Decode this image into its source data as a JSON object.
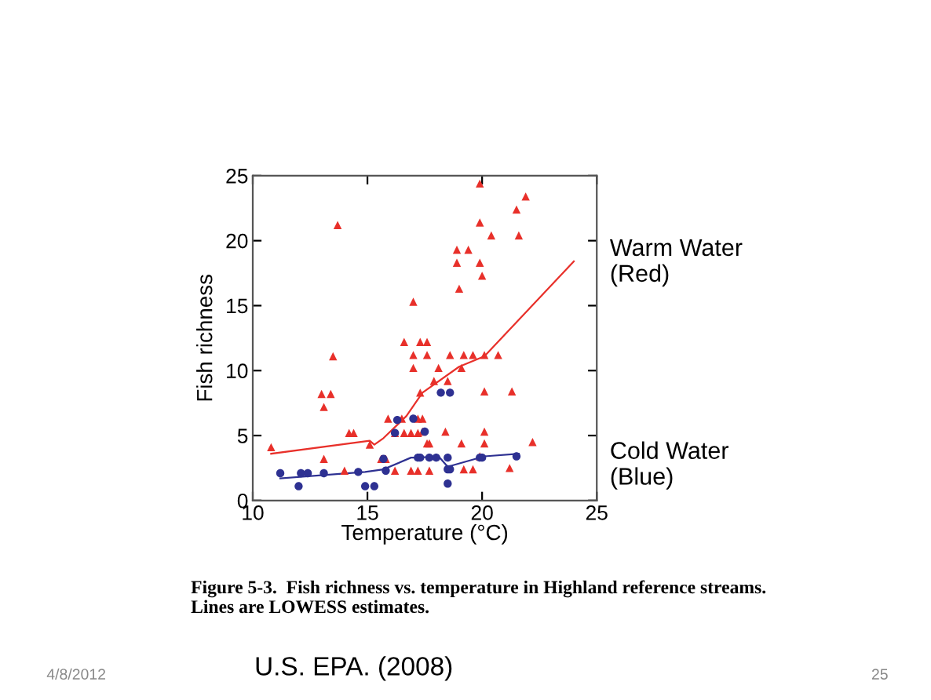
{
  "chart_data": {
    "type": "scatter",
    "xlabel": "Temperature (°C)",
    "ylabel": "Fish richness",
    "xlim": [
      10,
      25
    ],
    "ylim": [
      0,
      25
    ],
    "xticks": [
      10,
      15,
      20,
      25
    ],
    "yticks": [
      0,
      5,
      10,
      15,
      20,
      25
    ],
    "grid": false,
    "legend": false,
    "series": [
      {
        "marker": "triangle",
        "color": "#e8302a",
        "x": [
          10.8,
          13.7,
          13.5,
          13.0,
          13.4,
          13.1,
          13.1,
          14.2,
          14.4,
          14.0,
          15.1,
          15.6,
          15.8,
          16.2,
          15.9,
          16.2,
          16.5,
          16.6,
          16.9,
          17.2,
          17.0,
          16.6,
          17.0,
          17.0,
          17.3,
          17.3,
          17.2,
          16.9,
          17.2,
          19.9,
          21.9,
          21.5,
          21.6,
          19.9,
          20.4,
          18.9,
          19.4,
          18.9,
          19.9,
          20.0,
          19.0,
          17.6,
          17.6,
          18.6,
          19.2,
          19.6,
          20.1,
          20.7,
          18.1,
          19.1,
          17.9,
          18.5,
          20.1,
          21.3,
          17.4,
          17.4,
          18.4,
          20.1,
          17.6,
          17.7,
          19.1,
          20.1,
          22.2,
          17.7,
          19.2,
          19.6,
          21.2,
          19.9
        ],
        "values": [
          4.1,
          21.2,
          11.1,
          8.2,
          8.2,
          7.2,
          3.2,
          5.2,
          5.2,
          2.3,
          4.3,
          3.2,
          3.2,
          5.2,
          6.3,
          2.3,
          6.3,
          5.2,
          5.2,
          5.2,
          15.3,
          12.2,
          11.2,
          10.2,
          12.2,
          8.3,
          6.3,
          2.3,
          2.3,
          24.4,
          23.4,
          22.4,
          20.4,
          21.4,
          20.4,
          19.3,
          19.3,
          18.3,
          18.3,
          17.3,
          16.3,
          12.2,
          11.2,
          11.2,
          11.2,
          11.2,
          11.2,
          11.2,
          10.2,
          10.2,
          9.2,
          9.2,
          8.4,
          8.4,
          6.3,
          5.3,
          5.3,
          5.3,
          4.4,
          4.4,
          4.4,
          4.4,
          4.5,
          2.3,
          2.4,
          2.4,
          2.5,
          3.4
        ]
      },
      {
        "marker": "circle",
        "color": "#2e3192",
        "x": [
          11.2,
          12.0,
          12.1,
          12.4,
          13.1,
          14.6,
          14.9,
          15.3,
          15.7,
          15.8,
          16.3,
          16.2,
          17.2,
          17.3,
          17.7,
          18.0,
          18.5,
          18.2,
          18.6,
          17.5,
          17.0,
          18.5,
          18.6,
          18.5,
          19.9,
          20.0,
          21.5
        ],
        "values": [
          2.1,
          1.1,
          2.1,
          2.1,
          2.1,
          2.2,
          1.1,
          1.1,
          3.2,
          2.3,
          6.2,
          5.2,
          3.3,
          3.3,
          3.3,
          3.3,
          3.3,
          8.3,
          8.3,
          5.3,
          6.3,
          2.4,
          2.4,
          1.3,
          3.3,
          3.3,
          3.4
        ]
      },
      {
        "type": "line",
        "marker": "none",
        "color": "#e8302a",
        "x": [
          10.8,
          15.1,
          15.3,
          15.7,
          16.7,
          17.4,
          19.0,
          20.1,
          24.0
        ],
        "values": [
          3.6,
          4.6,
          4.3,
          4.8,
          6.5,
          8.3,
          10.3,
          11.1,
          18.4
        ]
      },
      {
        "type": "line",
        "marker": "none",
        "color": "#2e3192",
        "x": [
          11.2,
          14.9,
          15.7,
          16.9,
          17.2,
          18.1,
          18.5,
          20.1,
          21.6
        ],
        "values": [
          1.7,
          2.2,
          2.4,
          3.3,
          3.3,
          3.4,
          2.6,
          3.4,
          3.6
        ]
      }
    ],
    "annotations": [
      "Warm Water\n(Red)",
      "Cold Water\n(Blue)",
      "Figure 5-3.  Fish richness vs. temperature in Highland reference streams.\nLines are LOWESS estimates.",
      "U.S. EPA. (2008)",
      "4/8/2012",
      "25"
    ]
  }
}
